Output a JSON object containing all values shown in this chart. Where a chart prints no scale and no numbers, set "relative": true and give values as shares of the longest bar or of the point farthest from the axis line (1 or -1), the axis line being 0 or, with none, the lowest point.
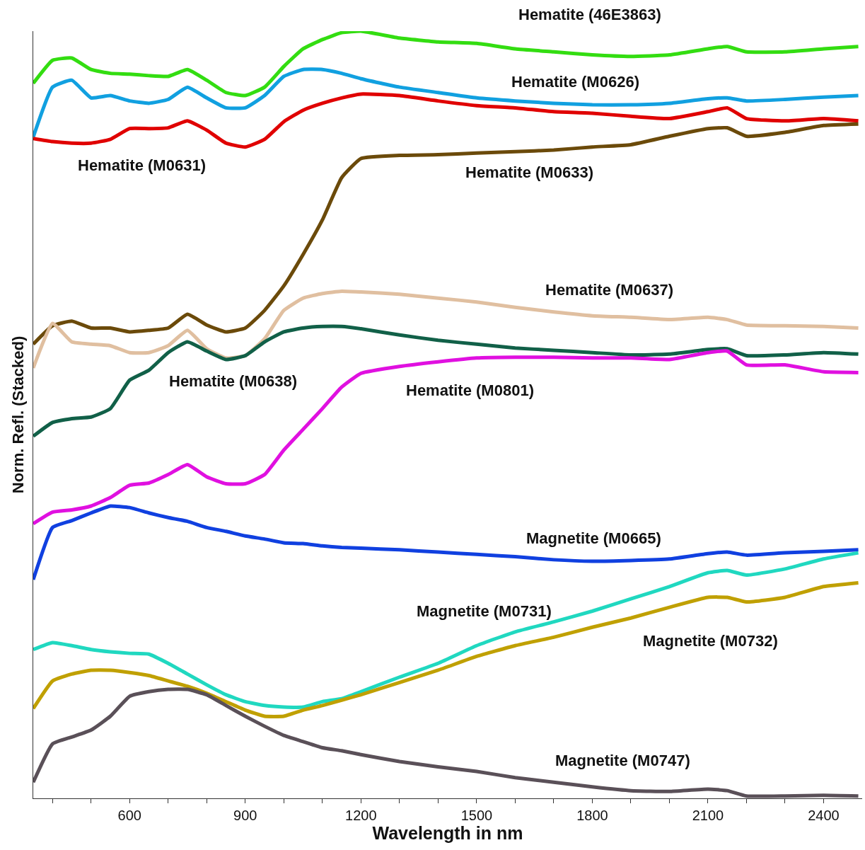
{
  "chart_data": {
    "type": "line",
    "relative": true,
    "xlabel": "Wavelength in nm",
    "ylabel": "Norm. Refl. (Stacked)",
    "tick_labels": "x",
    "xlim": [
      350,
      2500
    ],
    "xticks": [
      {
        "value": 400,
        "label": null
      },
      {
        "value": 500,
        "label": null
      },
      600,
      {
        "value": 700,
        "label": null
      },
      {
        "value": 800,
        "label": null
      },
      900,
      {
        "value": 1000,
        "label": null
      },
      {
        "value": 1100,
        "label": null
      },
      1200,
      {
        "value": 1300,
        "label": null
      },
      {
        "value": 1400,
        "label": null
      },
      1500,
      {
        "value": 1600,
        "label": null
      },
      {
        "value": 1700,
        "label": null
      },
      1800,
      {
        "value": 1900,
        "label": null
      },
      {
        "value": 2000,
        "label": null
      },
      2100,
      {
        "value": 2200,
        "label": null
      },
      {
        "value": 2300,
        "label": null
      },
      2400
    ],
    "x": [
      350,
      400,
      450,
      500,
      550,
      600,
      650,
      700,
      750,
      800,
      850,
      900,
      950,
      1000,
      1050,
      1100,
      1150,
      1200,
      1300,
      1400,
      1500,
      1600,
      1700,
      1800,
      1900,
      2000,
      2100,
      2150,
      2200,
      2300,
      2400,
      2490
    ],
    "series": [
      {
        "name": "Hematite (46E3863)",
        "color": "#33dd11",
        "values": [
          0.932,
          0.962,
          0.965,
          0.95,
          0.945,
          0.944,
          0.942,
          0.941,
          0.95,
          0.936,
          0.92,
          0.916,
          0.927,
          0.954,
          0.977,
          0.989,
          0.998,
          1.0,
          0.991,
          0.986,
          0.984,
          0.977,
          0.973,
          0.969,
          0.967,
          0.969,
          0.977,
          0.98,
          0.973,
          0.973,
          0.977,
          0.98
        ]
      },
      {
        "name": "Hematite (M0626)",
        "color": "#11a0e0",
        "values": [
          0.862,
          0.927,
          0.936,
          0.913,
          0.916,
          0.909,
          0.906,
          0.911,
          0.927,
          0.913,
          0.9,
          0.9,
          0.916,
          0.941,
          0.95,
          0.95,
          0.945,
          0.938,
          0.927,
          0.92,
          0.913,
          0.909,
          0.906,
          0.904,
          0.904,
          0.906,
          0.912,
          0.913,
          0.909,
          0.911,
          0.914,
          0.916
        ]
      },
      {
        "name": "Hematite (M0631)",
        "color": "#e00000",
        "values": [
          0.86,
          0.856,
          0.854,
          0.854,
          0.859,
          0.873,
          0.873,
          0.874,
          0.883,
          0.871,
          0.854,
          0.849,
          0.859,
          0.882,
          0.897,
          0.906,
          0.913,
          0.918,
          0.916,
          0.909,
          0.903,
          0.9,
          0.895,
          0.893,
          0.889,
          0.886,
          0.895,
          0.9,
          0.886,
          0.883,
          0.886,
          0.883
        ]
      },
      {
        "name": "Hematite (M0633)",
        "color": "#6b4a0a",
        "values": [
          0.592,
          0.616,
          0.622,
          0.613,
          0.613,
          0.608,
          0.61,
          0.613,
          0.631,
          0.617,
          0.608,
          0.613,
          0.636,
          0.668,
          0.709,
          0.754,
          0.809,
          0.834,
          0.838,
          0.839,
          0.841,
          0.843,
          0.845,
          0.849,
          0.852,
          0.863,
          0.873,
          0.874,
          0.863,
          0.868,
          0.877,
          0.879
        ]
      },
      {
        "name": "Hematite (M0637)",
        "color": "#e0bfa0",
        "values": [
          0.561,
          0.619,
          0.595,
          0.592,
          0.59,
          0.581,
          0.581,
          0.59,
          0.61,
          0.586,
          0.574,
          0.577,
          0.599,
          0.636,
          0.652,
          0.658,
          0.661,
          0.66,
          0.657,
          0.652,
          0.647,
          0.64,
          0.634,
          0.629,
          0.627,
          0.624,
          0.627,
          0.624,
          0.617,
          0.616,
          0.615,
          0.613
        ]
      },
      {
        "name": "Hematite (M0638)",
        "color": "#116048",
        "values": [
          0.472,
          0.49,
          0.495,
          0.497,
          0.508,
          0.545,
          0.558,
          0.581,
          0.595,
          0.583,
          0.572,
          0.577,
          0.595,
          0.608,
          0.613,
          0.615,
          0.615,
          0.612,
          0.604,
          0.597,
          0.592,
          0.587,
          0.584,
          0.581,
          0.578,
          0.579,
          0.585,
          0.586,
          0.577,
          0.578,
          0.581,
          0.579
        ]
      },
      {
        "name": "Hematite (M0801)",
        "color": "#e010e0",
        "values": [
          0.358,
          0.373,
          0.376,
          0.381,
          0.392,
          0.408,
          0.411,
          0.422,
          0.435,
          0.419,
          0.41,
          0.41,
          0.422,
          0.454,
          0.481,
          0.508,
          0.536,
          0.554,
          0.563,
          0.569,
          0.574,
          0.575,
          0.575,
          0.574,
          0.574,
          0.572,
          0.581,
          0.583,
          0.565,
          0.565,
          0.556,
          0.555
        ]
      },
      {
        "name": "Magnetite (M0665)",
        "color": "#1040e0",
        "values": [
          0.285,
          0.353,
          0.362,
          0.372,
          0.381,
          0.379,
          0.372,
          0.366,
          0.361,
          0.353,
          0.348,
          0.342,
          0.338,
          0.333,
          0.332,
          0.329,
          0.327,
          0.326,
          0.324,
          0.321,
          0.318,
          0.315,
          0.311,
          0.309,
          0.31,
          0.312,
          0.319,
          0.321,
          0.317,
          0.32,
          0.322,
          0.324
        ]
      },
      {
        "name": "Magnetite (M0731)",
        "color": "#20d8c0",
        "values": [
          0.194,
          0.203,
          0.199,
          0.194,
          0.191,
          0.189,
          0.188,
          0.176,
          0.162,
          0.148,
          0.135,
          0.126,
          0.121,
          0.119,
          0.119,
          0.126,
          0.13,
          0.139,
          0.158,
          0.176,
          0.199,
          0.217,
          0.23,
          0.244,
          0.26,
          0.276,
          0.294,
          0.297,
          0.291,
          0.299,
          0.312,
          0.32
        ]
      },
      {
        "name": "Magnetite (M0732)",
        "color": "#c0a000",
        "values": [
          0.117,
          0.153,
          0.162,
          0.167,
          0.167,
          0.164,
          0.16,
          0.153,
          0.146,
          0.137,
          0.126,
          0.115,
          0.107,
          0.107,
          0.115,
          0.121,
          0.128,
          0.135,
          0.151,
          0.167,
          0.185,
          0.199,
          0.21,
          0.223,
          0.235,
          0.249,
          0.262,
          0.262,
          0.256,
          0.262,
          0.276,
          0.281
        ]
      },
      {
        "name": "Magnetite (M0747)",
        "color": "#5a5058",
        "values": [
          0.021,
          0.071,
          0.08,
          0.089,
          0.107,
          0.133,
          0.139,
          0.142,
          0.142,
          0.135,
          0.121,
          0.107,
          0.094,
          0.082,
          0.074,
          0.066,
          0.062,
          0.057,
          0.048,
          0.041,
          0.035,
          0.027,
          0.021,
          0.015,
          0.01,
          0.009,
          0.012,
          0.01,
          0.003,
          0.003,
          0.004,
          0.003
        ]
      }
    ]
  }
}
